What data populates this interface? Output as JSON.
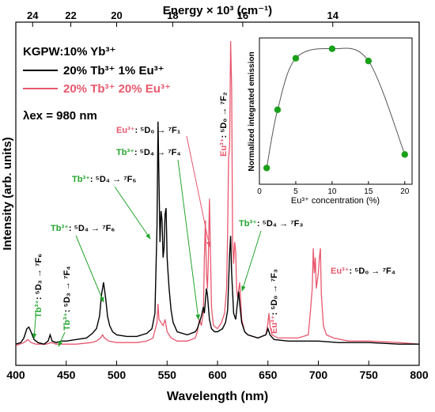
{
  "chart_data": [
    {
      "type": "line",
      "xlabel": "Wavelength (nm)",
      "ylabel": "Intensity (arb. units)",
      "x2label": "Energy × 10³ (cm⁻¹)",
      "xlim": [
        400,
        800
      ],
      "xticks": [
        400,
        450,
        500,
        550,
        600,
        650,
        700,
        750,
        800
      ],
      "x2ticks": [
        24,
        22,
        20,
        18,
        16,
        14
      ],
      "grid": false,
      "colors": {
        "black": "#000000",
        "pink": "#e8586e",
        "green": "#22a52c"
      },
      "legend": {
        "title": "KGPW:10% Yb³⁺",
        "items": [
          "20% Tb³⁺ 1% Eu³⁺",
          "20% Tb³⁺ 20% Eu³⁺"
        ],
        "excitation": "λex = 980 nm"
      },
      "series": [
        {
          "name": "20% Tb³⁺ 1% Eu³⁺",
          "color": "#000000",
          "points": [
            [
              400,
              0.02
            ],
            [
              405,
              0.025
            ],
            [
              408,
              0.04
            ],
            [
              411,
              0.07
            ],
            [
              413,
              0.075
            ],
            [
              415,
              0.06
            ],
            [
              418,
              0.035
            ],
            [
              422,
              0.025
            ],
            [
              428,
              0.02
            ],
            [
              432,
              0.03
            ],
            [
              434,
              0.05
            ],
            [
              436,
              0.03
            ],
            [
              440,
              0.025
            ],
            [
              445,
              0.03
            ],
            [
              450,
              0.03
            ],
            [
              460,
              0.035
            ],
            [
              470,
              0.04
            ],
            [
              476,
              0.055
            ],
            [
              480,
              0.07
            ],
            [
              483,
              0.11
            ],
            [
              485,
              0.18
            ],
            [
              487,
              0.22
            ],
            [
              489,
              0.17
            ],
            [
              491,
              0.11
            ],
            [
              493,
              0.08
            ],
            [
              496,
              0.06
            ],
            [
              500,
              0.05
            ],
            [
              510,
              0.045
            ],
            [
              520,
              0.045
            ],
            [
              530,
              0.055
            ],
            [
              535,
              0.07
            ],
            [
              538,
              0.12
            ],
            [
              540,
              0.4
            ],
            [
              541,
              0.74
            ],
            [
              542,
              0.55
            ],
            [
              543,
              0.35
            ],
            [
              544,
              0.45
            ],
            [
              545,
              0.42
            ],
            [
              546,
              0.3
            ],
            [
              547,
              0.33
            ],
            [
              548,
              0.44
            ],
            [
              549,
              0.46
            ],
            [
              550,
              0.3
            ],
            [
              551,
              0.25
            ],
            [
              552,
              0.2
            ],
            [
              554,
              0.13
            ],
            [
              556,
              0.09
            ],
            [
              560,
              0.06
            ],
            [
              570,
              0.05
            ],
            [
              578,
              0.06
            ],
            [
              580,
              0.07
            ],
            [
              582,
              0.09
            ],
            [
              584,
              0.11
            ],
            [
              586,
              0.14
            ],
            [
              587,
              0.12
            ],
            [
              588,
              0.16
            ],
            [
              589,
              0.2
            ],
            [
              590,
              0.18
            ],
            [
              591,
              0.14
            ],
            [
              592,
              0.1
            ],
            [
              594,
              0.07
            ],
            [
              597,
              0.06
            ],
            [
              600,
              0.06
            ],
            [
              605,
              0.07
            ],
            [
              608,
              0.09
            ],
            [
              610,
              0.13
            ],
            [
              612,
              0.31
            ],
            [
              613,
              0.37
            ],
            [
              614,
              0.25
            ],
            [
              616,
              0.12
            ],
            [
              618,
              0.1
            ],
            [
              620,
              0.16
            ],
            [
              621,
              0.19
            ],
            [
              622,
              0.15
            ],
            [
              624,
              0.09
            ],
            [
              627,
              0.06
            ],
            [
              630,
              0.05
            ],
            [
              640,
              0.04
            ],
            [
              648,
              0.05
            ],
            [
              650,
              0.07
            ],
            [
              652,
              0.05
            ],
            [
              656,
              0.035
            ],
            [
              670,
              0.03
            ],
            [
              690,
              0.03
            ],
            [
              700,
              0.03
            ],
            [
              720,
              0.025
            ],
            [
              750,
              0.025
            ],
            [
              780,
              0.02
            ],
            [
              800,
              0.02
            ]
          ]
        },
        {
          "name": "20% Tb³⁺ 20% Eu³⁺",
          "color": "#e8586e",
          "points": [
            [
              400,
              0.015
            ],
            [
              408,
              0.025
            ],
            [
              412,
              0.035
            ],
            [
              415,
              0.025
            ],
            [
              420,
              0.02
            ],
            [
              430,
              0.02
            ],
            [
              435,
              0.025
            ],
            [
              440,
              0.02
            ],
            [
              450,
              0.02
            ],
            [
              460,
              0.02
            ],
            [
              475,
              0.025
            ],
            [
              480,
              0.03
            ],
            [
              484,
              0.04
            ],
            [
              486,
              0.05
            ],
            [
              488,
              0.04
            ],
            [
              492,
              0.03
            ],
            [
              500,
              0.025
            ],
            [
              520,
              0.025
            ],
            [
              530,
              0.03
            ],
            [
              536,
              0.04
            ],
            [
              540,
              0.09
            ],
            [
              541,
              0.15
            ],
            [
              542,
              0.1
            ],
            [
              544,
              0.09
            ],
            [
              546,
              0.08
            ],
            [
              548,
              0.1
            ],
            [
              550,
              0.06
            ],
            [
              554,
              0.04
            ],
            [
              560,
              0.03
            ],
            [
              570,
              0.03
            ],
            [
              578,
              0.04
            ],
            [
              580,
              0.06
            ],
            [
              582,
              0.1
            ],
            [
              584,
              0.08
            ],
            [
              586,
              0.12
            ],
            [
              587,
              0.3
            ],
            [
              588,
              0.42
            ],
            [
              589,
              0.25
            ],
            [
              590,
              0.2
            ],
            [
              591,
              0.3
            ],
            [
              592,
              0.49
            ],
            [
              593,
              0.32
            ],
            [
              594,
              0.14
            ],
            [
              596,
              0.08
            ],
            [
              600,
              0.07
            ],
            [
              604,
              0.09
            ],
            [
              607,
              0.12
            ],
            [
              609,
              0.2
            ],
            [
              610,
              0.38
            ],
            [
              611,
              0.62
            ],
            [
              612,
              0.66
            ],
            [
              613,
              1.0
            ],
            [
              614,
              0.85
            ],
            [
              615,
              0.35
            ],
            [
              616,
              0.28
            ],
            [
              617,
              0.35
            ],
            [
              618,
              0.32
            ],
            [
              619,
              0.2
            ],
            [
              620,
              0.17
            ],
            [
              622,
              0.22
            ],
            [
              624,
              0.1
            ],
            [
              627,
              0.06
            ],
            [
              630,
              0.05
            ],
            [
              640,
              0.04
            ],
            [
              648,
              0.05
            ],
            [
              650,
              0.09
            ],
            [
              651,
              0.12
            ],
            [
              652,
              0.08
            ],
            [
              654,
              0.05
            ],
            [
              660,
              0.04
            ],
            [
              680,
              0.04
            ],
            [
              690,
              0.05
            ],
            [
              692,
              0.12
            ],
            [
              694,
              0.2
            ],
            [
              695,
              0.33
            ],
            [
              696,
              0.25
            ],
            [
              697,
              0.3
            ],
            [
              698,
              0.2
            ],
            [
              700,
              0.25
            ],
            [
              701,
              0.3
            ],
            [
              702,
              0.33
            ],
            [
              703,
              0.18
            ],
            [
              705,
              0.08
            ],
            [
              708,
              0.05
            ],
            [
              715,
              0.04
            ],
            [
              730,
              0.03
            ],
            [
              750,
              0.03
            ],
            [
              780,
              0.025
            ],
            [
              800,
              0.02
            ]
          ]
        }
      ],
      "annotations": [
        {
          "ion": "Tb³⁺",
          "transition": "⁵D₃ → ⁷F₆",
          "vertical": true
        },
        {
          "ion": "Tb³⁺",
          "transition": "⁵D₃ → ⁷F₄",
          "vertical": true
        },
        {
          "ion": "Tb³⁺",
          "transition": "⁵D₄ → ⁷F₆"
        },
        {
          "ion": "Tb³⁺",
          "transition": "⁵D₄ → ⁷F₅"
        },
        {
          "ion": "Tb³⁺",
          "transition": "⁵D₄ → ⁷F₄"
        },
        {
          "ion": "Eu³⁺",
          "transition": "⁵D₀ → ⁷F₁"
        },
        {
          "ion": "Eu³⁺",
          "transition": "⁵D₀ → ⁷F₂",
          "vertical": true
        },
        {
          "ion": "Tb³⁺",
          "transition": "⁵D₄ → ⁷F₃"
        },
        {
          "ion": "Eu³⁺",
          "transition": "⁵D₀ → ⁷F₃",
          "vertical": true
        },
        {
          "ion": "Eu³⁺",
          "transition": "⁵D₀ → ⁷F₄"
        }
      ]
    },
    {
      "type": "scatter",
      "xlabel": "Eu³⁺ concentration (%)",
      "ylabel": "Normalized integrated emission",
      "xlim": [
        0,
        21
      ],
      "ylim": [
        0,
        1.08
      ],
      "xticks": [
        0,
        5,
        10,
        15,
        20
      ],
      "x": [
        1,
        2.5,
        5,
        10,
        15,
        20
      ],
      "y": [
        0.12,
        0.55,
        0.93,
        1.0,
        0.91,
        0.22
      ],
      "fit": {
        "type": "curve",
        "color": "#555555"
      },
      "marker_color": "#1aa01a"
    }
  ]
}
